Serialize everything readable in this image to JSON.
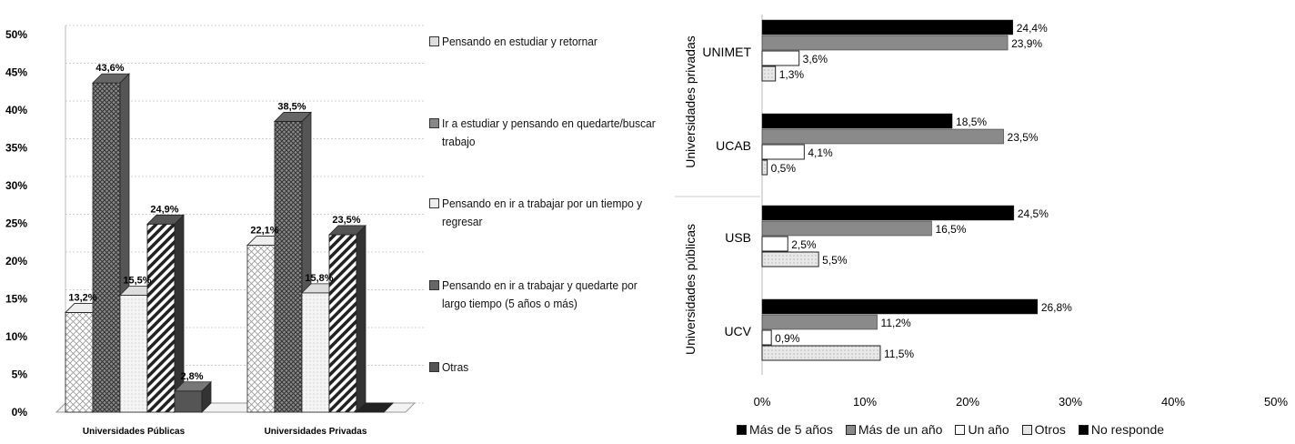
{
  "chart_data": [
    {
      "type": "bar",
      "title": "",
      "ylim": [
        0,
        50
      ],
      "y_ticks": [
        "0%",
        "5%",
        "10%",
        "15%",
        "20%",
        "25%",
        "30%",
        "35%",
        "40%",
        "45%",
        "50%"
      ],
      "categories": [
        "Universidades Públicas",
        "Universidades Privadas"
      ],
      "legend_position": "right",
      "series": [
        {
          "name": "Pensando en estudiar y retornar",
          "values": [
            13.2,
            22.1
          ],
          "labels": [
            "13,2%",
            "22,1%"
          ],
          "color": "#dcdcdc"
        },
        {
          "name": "Ir a estudiar y pensando en quedarte/buscar trabajo",
          "values": [
            43.6,
            38.5
          ],
          "labels": [
            "43,6%",
            "38,5%"
          ],
          "color": "#777777"
        },
        {
          "name": "Pensando en ir a trabajar por un tiempo y regresar",
          "values": [
            15.5,
            15.8
          ],
          "labels": [
            "15,5%",
            "15,8%"
          ],
          "color": "#f2f2f2"
        },
        {
          "name": "Pensando en ir a trabajar y quedarte por largo tiempo (5 años o más)",
          "values": [
            24.9,
            23.5
          ],
          "labels": [
            "24,9%",
            "23,5%"
          ],
          "color": "#444444"
        },
        {
          "name": "Otras",
          "values": [
            2.8,
            0
          ],
          "labels": [
            "2,8%",
            ""
          ],
          "color": "#555555"
        }
      ]
    },
    {
      "type": "bar",
      "orientation": "horizontal",
      "xlim": [
        0,
        50
      ],
      "x_ticks": [
        "0%",
        "10%",
        "20%",
        "30%",
        "40%",
        "50%"
      ],
      "groups": [
        {
          "name": "Universidades privadas",
          "categories": [
            "UNIMET",
            "UCAB"
          ]
        },
        {
          "name": "Universidades públicas",
          "categories": [
            "USB",
            "UCV"
          ]
        }
      ],
      "categories": [
        "UNIMET",
        "UCAB",
        "USB",
        "UCV"
      ],
      "legend_position": "bottom",
      "series": [
        {
          "name": "Más de 5 años",
          "values": [
            24.4,
            18.5,
            24.5,
            26.8
          ],
          "labels": [
            "24,4%",
            "18,5%",
            "24,5%",
            "26,8%"
          ],
          "color": "#000000"
        },
        {
          "name": "Más de un año",
          "values": [
            23.9,
            23.5,
            16.5,
            11.2
          ],
          "labels": [
            "23,9%",
            "23,5%",
            "16,5%",
            "11,2%"
          ],
          "color": "#8a8a8a"
        },
        {
          "name": "Un año",
          "values": [
            3.6,
            4.1,
            2.5,
            0.9
          ],
          "labels": [
            "3,6%",
            "4,1%",
            "2,5%",
            "0,9%"
          ],
          "color": "#ffffff"
        },
        {
          "name": "Otros",
          "values": [
            1.3,
            0.5,
            5.5,
            11.5
          ],
          "labels": [
            "1,3%",
            "0,5%",
            "5,5%",
            "11,5%"
          ],
          "color": "#e6e6e6"
        },
        {
          "name": "No responde",
          "values": [
            0,
            0,
            0,
            0
          ],
          "labels": [
            "",
            "",
            "",
            ""
          ],
          "color": "#000000"
        }
      ]
    }
  ]
}
